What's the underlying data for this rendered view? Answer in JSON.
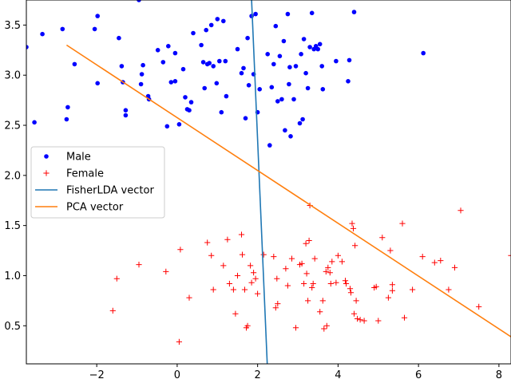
{
  "chart_data": {
    "type": "scatter",
    "xlim": [
      -3.75,
      8.3
    ],
    "ylim": [
      0.12,
      3.75
    ],
    "x_ticks": [
      -2,
      0,
      2,
      4,
      6,
      8
    ],
    "y_ticks": [
      0.5,
      1.0,
      1.5,
      2.0,
      2.5,
      3.0,
      3.5
    ],
    "x_tick_labels": [
      "−2",
      "0",
      "2",
      "4",
      "6",
      "8"
    ],
    "y_tick_labels": [
      "0.5",
      "1.0",
      "1.5",
      "2.0",
      "2.5",
      "3.0",
      "3.5"
    ],
    "grid": false,
    "legend_placement": "center-left",
    "series": [
      {
        "name": "Male",
        "kind": "scatter",
        "marker": "dot",
        "color": "#0000ff",
        "points": [
          [
            -3.75,
            3.28
          ],
          [
            -3.55,
            2.53
          ],
          [
            -3.35,
            3.41
          ],
          [
            -2.85,
            3.46
          ],
          [
            -2.75,
            2.56
          ],
          [
            -2.72,
            2.68
          ],
          [
            -2.55,
            3.11
          ],
          [
            -2.05,
            3.46
          ],
          [
            -1.98,
            3.59
          ],
          [
            -1.98,
            2.92
          ],
          [
            -1.45,
            3.37
          ],
          [
            -1.38,
            3.09
          ],
          [
            -1.35,
            2.93
          ],
          [
            -1.28,
            2.65
          ],
          [
            -1.28,
            2.6
          ],
          [
            -0.95,
            3.75
          ],
          [
            -0.88,
            3.01
          ],
          [
            -0.85,
            3.1
          ],
          [
            -0.9,
            2.91
          ],
          [
            -0.72,
            2.79
          ],
          [
            -0.7,
            2.76
          ],
          [
            -0.48,
            3.25
          ],
          [
            -0.35,
            3.13
          ],
          [
            -0.25,
            2.49
          ],
          [
            -0.22,
            3.29
          ],
          [
            -0.15,
            2.93
          ],
          [
            -0.05,
            3.22
          ],
          [
            -0.05,
            2.94
          ],
          [
            0.05,
            2.51
          ],
          [
            0.15,
            3.06
          ],
          [
            0.2,
            2.78
          ],
          [
            0.25,
            2.66
          ],
          [
            0.3,
            2.65
          ],
          [
            0.35,
            2.73
          ],
          [
            0.4,
            3.42
          ],
          [
            0.6,
            3.3
          ],
          [
            0.65,
            3.13
          ],
          [
            0.68,
            2.87
          ],
          [
            0.72,
            3.45
          ],
          [
            0.75,
            3.11
          ],
          [
            0.8,
            3.12
          ],
          [
            0.85,
            3.5
          ],
          [
            0.9,
            3.09
          ],
          [
            0.98,
            2.92
          ],
          [
            1.0,
            3.56
          ],
          [
            1.05,
            3.14
          ],
          [
            1.1,
            2.63
          ],
          [
            1.15,
            3.54
          ],
          [
            1.2,
            3.14
          ],
          [
            1.22,
            2.79
          ],
          [
            1.5,
            3.26
          ],
          [
            1.6,
            3.02
          ],
          [
            1.65,
            3.07
          ],
          [
            1.7,
            2.57
          ],
          [
            1.75,
            3.37
          ],
          [
            1.78,
            2.9
          ],
          [
            1.85,
            3.59
          ],
          [
            1.9,
            3.01
          ],
          [
            1.95,
            3.61
          ],
          [
            2.0,
            2.63
          ],
          [
            2.05,
            2.86
          ],
          [
            2.25,
            3.21
          ],
          [
            2.3,
            2.3
          ],
          [
            2.35,
            2.88
          ],
          [
            2.4,
            3.11
          ],
          [
            2.45,
            3.49
          ],
          [
            2.5,
            2.74
          ],
          [
            2.55,
            3.19
          ],
          [
            2.6,
            2.76
          ],
          [
            2.65,
            3.34
          ],
          [
            2.68,
            2.45
          ],
          [
            2.75,
            3.61
          ],
          [
            2.78,
            2.91
          ],
          [
            2.8,
            3.08
          ],
          [
            2.82,
            2.39
          ],
          [
            2.9,
            2.76
          ],
          [
            2.95,
            3.09
          ],
          [
            3.05,
            2.52
          ],
          [
            3.08,
            3.21
          ],
          [
            3.12,
            2.56
          ],
          [
            3.15,
            3.36
          ],
          [
            3.2,
            3.02
          ],
          [
            3.25,
            2.87
          ],
          [
            3.3,
            3.28
          ],
          [
            3.35,
            3.62
          ],
          [
            3.4,
            3.26
          ],
          [
            3.45,
            3.29
          ],
          [
            3.5,
            3.26
          ],
          [
            3.55,
            3.31
          ],
          [
            3.6,
            3.09
          ],
          [
            3.62,
            2.86
          ],
          [
            3.95,
            3.14
          ],
          [
            4.25,
            2.94
          ],
          [
            4.28,
            3.15
          ],
          [
            4.4,
            3.63
          ],
          [
            6.12,
            3.22
          ]
        ]
      },
      {
        "name": "Female",
        "kind": "scatter",
        "marker": "plus",
        "color": "#ff0000",
        "points": [
          [
            -1.6,
            0.65
          ],
          [
            -1.5,
            0.97
          ],
          [
            -0.95,
            1.11
          ],
          [
            -0.28,
            1.04
          ],
          [
            0.05,
            0.34
          ],
          [
            0.08,
            1.26
          ],
          [
            0.3,
            0.78
          ],
          [
            0.75,
            1.33
          ],
          [
            0.85,
            1.2
          ],
          [
            0.9,
            0.86
          ],
          [
            1.15,
            1.1
          ],
          [
            1.25,
            1.36
          ],
          [
            1.3,
            0.92
          ],
          [
            1.4,
            0.86
          ],
          [
            1.45,
            0.62
          ],
          [
            1.5,
            1.0
          ],
          [
            1.6,
            1.41
          ],
          [
            1.62,
            1.21
          ],
          [
            1.68,
            0.86
          ],
          [
            1.72,
            0.48
          ],
          [
            1.75,
            0.5
          ],
          [
            1.82,
            1.1
          ],
          [
            1.85,
            0.93
          ],
          [
            1.9,
            1.03
          ],
          [
            1.95,
            0.97
          ],
          [
            2.0,
            0.82
          ],
          [
            2.15,
            1.21
          ],
          [
            2.4,
            1.19
          ],
          [
            2.45,
            0.68
          ],
          [
            2.5,
            0.72
          ],
          [
            2.48,
            0.97
          ],
          [
            2.7,
            1.07
          ],
          [
            2.75,
            0.9
          ],
          [
            2.85,
            1.17
          ],
          [
            2.95,
            0.48
          ],
          [
            3.05,
            1.11
          ],
          [
            3.1,
            1.12
          ],
          [
            3.15,
            0.92
          ],
          [
            3.2,
            1.32
          ],
          [
            3.22,
            1.02
          ],
          [
            3.25,
            0.75
          ],
          [
            3.28,
            1.35
          ],
          [
            3.3,
            1.7
          ],
          [
            3.35,
            0.88
          ],
          [
            3.38,
            0.92
          ],
          [
            3.42,
            1.17
          ],
          [
            3.55,
            0.64
          ],
          [
            3.62,
            0.75
          ],
          [
            3.65,
            0.47
          ],
          [
            3.7,
            1.04
          ],
          [
            3.72,
            0.5
          ],
          [
            3.75,
            1.08
          ],
          [
            3.8,
            1.03
          ],
          [
            3.82,
            0.92
          ],
          [
            3.85,
            1.14
          ],
          [
            3.95,
            0.93
          ],
          [
            4.0,
            1.2
          ],
          [
            4.1,
            1.14
          ],
          [
            4.18,
            0.95
          ],
          [
            4.2,
            0.92
          ],
          [
            4.3,
            0.87
          ],
          [
            4.32,
            0.83
          ],
          [
            4.35,
            1.52
          ],
          [
            4.38,
            1.47
          ],
          [
            4.4,
            0.62
          ],
          [
            4.42,
            1.3
          ],
          [
            4.45,
            0.75
          ],
          [
            4.48,
            0.57
          ],
          [
            4.55,
            0.56
          ],
          [
            4.65,
            0.55
          ],
          [
            4.9,
            0.88
          ],
          [
            4.95,
            0.89
          ],
          [
            5.0,
            0.55
          ],
          [
            5.1,
            1.38
          ],
          [
            5.25,
            0.78
          ],
          [
            5.3,
            1.25
          ],
          [
            5.35,
            0.91
          ],
          [
            5.35,
            0.85
          ],
          [
            5.6,
            1.52
          ],
          [
            5.65,
            0.58
          ],
          [
            5.85,
            0.86
          ],
          [
            6.1,
            1.19
          ],
          [
            6.4,
            1.13
          ],
          [
            6.55,
            1.15
          ],
          [
            6.75,
            0.86
          ],
          [
            6.9,
            1.08
          ],
          [
            7.05,
            1.65
          ],
          [
            7.5,
            0.69
          ],
          [
            8.3,
            1.2
          ]
        ]
      },
      {
        "name": "FisherLDA vector",
        "kind": "line",
        "color": "#1f77b4",
        "x": [
          1.85,
          2.24
        ],
        "y": [
          3.75,
          0.12
        ]
      },
      {
        "name": "PCA vector",
        "kind": "line",
        "color": "#ff7f0e",
        "x": [
          -2.75,
          8.3
        ],
        "y": [
          3.3,
          0.39
        ]
      }
    ]
  }
}
